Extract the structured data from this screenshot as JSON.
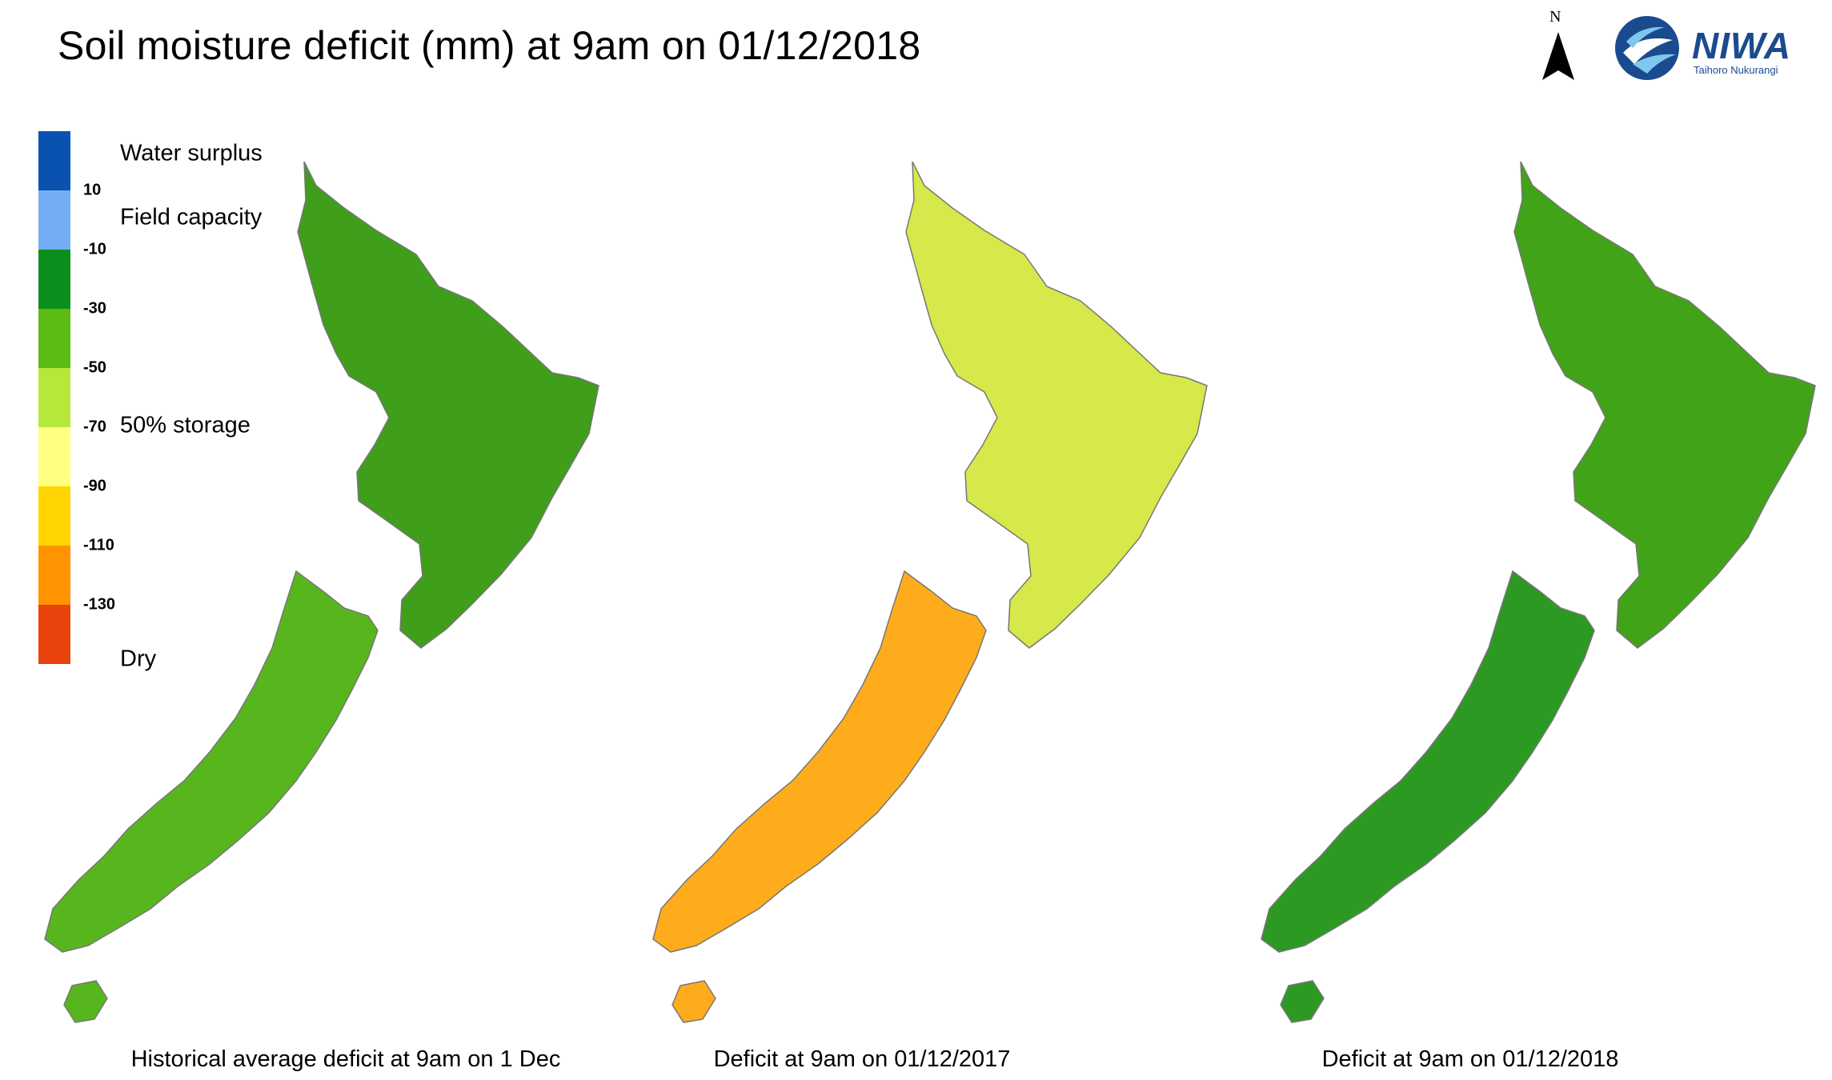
{
  "title": "Soil moisture deficit (mm) at  9am on 01/12/2018",
  "north_label": "N",
  "logo": {
    "name": "NIWA",
    "subtitle": "Taihoro Nukurangi"
  },
  "legend": {
    "colors": [
      "#0a52b0",
      "#73aef5",
      "#0a8f1c",
      "#5cbb12",
      "#b6e83a",
      "#ffff80",
      "#ffd400",
      "#ff9400",
      "#e8430d"
    ],
    "ticks": [
      "10",
      "-10",
      "-30",
      "-50",
      "-70",
      "-90",
      "-110",
      "-130"
    ],
    "labels": {
      "surplus": "Water surplus",
      "field_capacity": "Field capacity",
      "storage": "50% storage",
      "dry": "Dry"
    }
  },
  "maps": [
    {
      "caption": "Historical average deficit at  9am on 1 Dec",
      "north_fill": "#3f9e1a",
      "south_fill": "#57b61d"
    },
    {
      "caption": "Deficit at  9am on 01/12/2017",
      "north_fill": "#d7e84a",
      "south_fill": "#ffac1c"
    },
    {
      "caption": "Deficit at  9am on 01/12/2018",
      "north_fill": "#41a318",
      "south_fill": "#2c9a22"
    }
  ]
}
